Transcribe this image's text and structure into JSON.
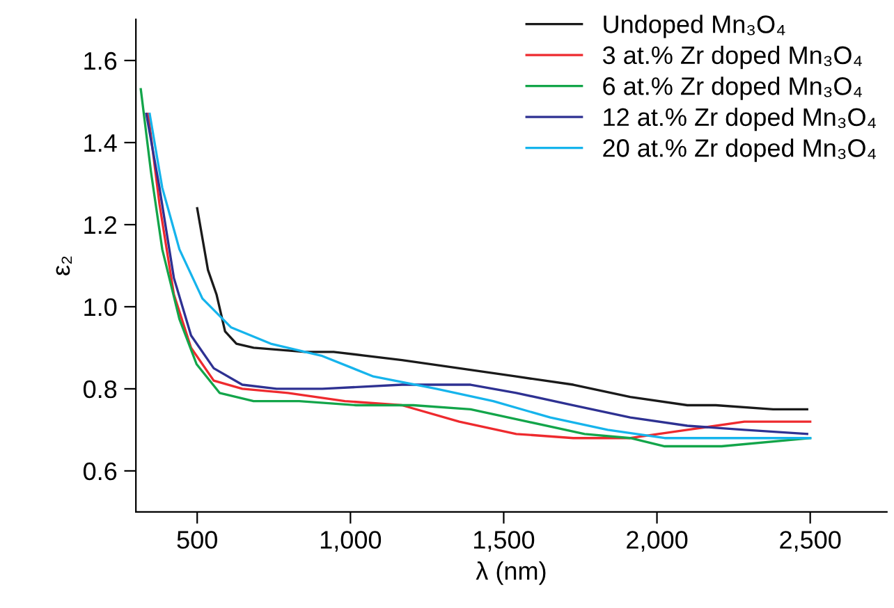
{
  "chart_data": {
    "type": "line",
    "xlabel": "λ (nm)",
    "ylabel": "ε₂",
    "xlim": [
      300,
      2750
    ],
    "ylim": [
      0.5,
      1.7
    ],
    "xticks": [
      {
        "value": 500,
        "label": "500"
      },
      {
        "value": 1000,
        "label": "1,000"
      },
      {
        "value": 1500,
        "label": "1,500"
      },
      {
        "value": 2000,
        "label": "2,000"
      },
      {
        "value": 2500,
        "label": "2,500"
      }
    ],
    "yticks": [
      {
        "value": 0.6,
        "label": "0.6"
      },
      {
        "value": 0.8,
        "label": "0.8"
      },
      {
        "value": 1.0,
        "label": "1.0"
      },
      {
        "value": 1.2,
        "label": "1.2"
      },
      {
        "value": 1.4,
        "label": "1.4"
      },
      {
        "value": 1.6,
        "label": "1.6"
      }
    ],
    "grid": false,
    "legend": "top right",
    "marker": "none",
    "line_style": "solid",
    "series": [
      {
        "name": "Undoped Mn₃O₄",
        "color": "#1a1a1a",
        "x": [
          500,
          535,
          563,
          591,
          628,
          684,
          852,
          945,
          1168,
          1355,
          1541,
          1727,
          1913,
          2099,
          2192,
          2379,
          2490
        ],
        "values": [
          1.24,
          1.09,
          1.03,
          0.94,
          0.91,
          0.9,
          0.89,
          0.89,
          0.87,
          0.85,
          0.83,
          0.81,
          0.78,
          0.76,
          0.76,
          0.75,
          0.75
        ]
      },
      {
        "name": "3 at.% Zr doped Mn₃O₄",
        "color": "#ee2a2e",
        "x": [
          340,
          377,
          424,
          480,
          554,
          647,
          796,
          982,
          1168,
          1355,
          1541,
          1727,
          1913,
          2099,
          2285,
          2500
        ],
        "values": [
          1.47,
          1.25,
          1.03,
          0.9,
          0.82,
          0.8,
          0.79,
          0.77,
          0.76,
          0.72,
          0.69,
          0.68,
          0.68,
          0.7,
          0.72,
          0.72
        ]
      },
      {
        "name": "6 at.% Zr doped Mn₃O₄",
        "color": "#13a54a",
        "x": [
          316,
          349,
          386,
          442,
          498,
          573,
          684,
          833,
          1019,
          1205,
          1392,
          1578,
          1764,
          1913,
          2025,
          2211,
          2500
        ],
        "values": [
          1.53,
          1.33,
          1.14,
          0.97,
          0.86,
          0.79,
          0.77,
          0.77,
          0.76,
          0.76,
          0.75,
          0.72,
          0.69,
          0.68,
          0.66,
          0.66,
          0.68
        ]
      },
      {
        "name": "12 at.% Zr doped Mn₃O₄",
        "color": "#2e3192",
        "x": [
          334,
          377,
          424,
          480,
          554,
          647,
          759,
          908,
          1168,
          1392,
          1541,
          1727,
          1913,
          2099,
          2285,
          2490
        ],
        "values": [
          1.47,
          1.29,
          1.07,
          0.93,
          0.85,
          0.81,
          0.8,
          0.8,
          0.81,
          0.81,
          0.79,
          0.76,
          0.73,
          0.71,
          0.7,
          0.69
        ]
      },
      {
        "name": "20 at.% Zr doped Mn₃O₄",
        "color": "#16b4ec",
        "x": [
          345,
          386,
          442,
          517,
          610,
          740,
          908,
          1075,
          1280,
          1466,
          1652,
          1839,
          2025,
          2192,
          2500
        ],
        "values": [
          1.47,
          1.29,
          1.14,
          1.02,
          0.95,
          0.91,
          0.88,
          0.83,
          0.8,
          0.77,
          0.73,
          0.7,
          0.68,
          0.68,
          0.68
        ]
      }
    ]
  }
}
